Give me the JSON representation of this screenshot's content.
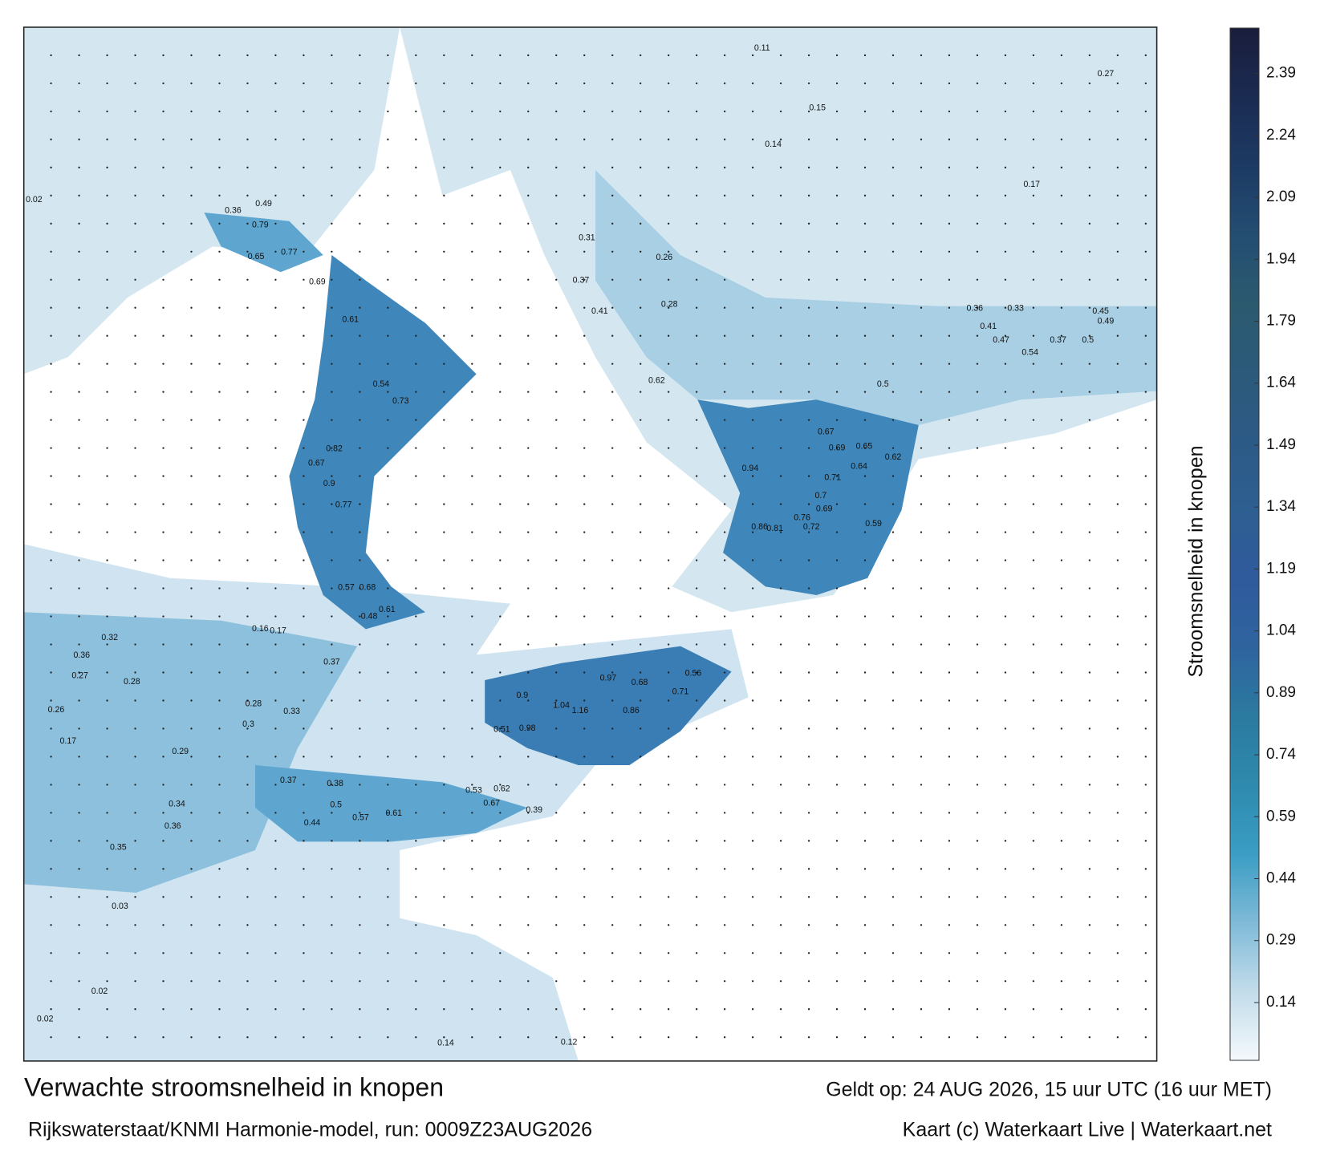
{
  "map": {
    "labels": [
      0.86,
      1.16,
      1.04,
      0.97,
      0.71,
      0.56,
      0.68,
      0.9,
      0.51,
      0.98,
      0.62,
      0.67,
      0.53,
      0.39,
      0.61,
      0.57,
      0.5,
      0.44,
      0.38,
      0.37,
      0.36,
      0.34,
      0.29,
      0.3,
      0.28,
      0.33,
      0.37,
      0.48,
      0.61,
      0.68,
      0.57,
      0.77,
      0.9,
      0.79,
      0.65,
      0.77,
      0.69,
      0.61,
      0.54,
      0.73,
      0.82,
      0.67,
      0.94,
      0.86,
      0.81,
      0.76,
      0.72,
      0.7,
      0.69,
      0.71,
      0.67,
      0.69,
      0.65,
      0.62,
      0.64,
      0.59,
      0.5,
      0.54,
      0.47,
      0.41,
      0.33,
      0.36,
      0.49,
      0.45,
      0.5,
      0.37,
      0.62,
      0.41,
      0.37,
      0.26,
      0.28,
      0.31,
      0.49,
      0.36,
      0.17,
      0.27,
      0.11,
      0.15,
      0.14,
      0.02,
      0.02,
      0.02,
      0.14,
      0.12,
      0.36,
      0.32,
      0.27,
      0.28,
      0.26,
      0.17,
      0.35,
      0.03,
      0.16,
      0.17
    ]
  },
  "colorbar": {
    "label": "Stroomsnelheid in knopen",
    "lim": [
      0,
      2.5
    ],
    "ticks": [
      0.14,
      0.29,
      0.44,
      0.59,
      0.74,
      0.89,
      1.04,
      1.19,
      1.34,
      1.49,
      1.64,
      1.79,
      1.94,
      2.09,
      2.24,
      2.39
    ],
    "colors": [
      "#f4f9fc",
      "#c2dcea",
      "#7fbad8",
      "#3b9dc4",
      "#2e8aae",
      "#2b7aa0",
      "#2f649f",
      "#2f5a9c",
      "#2e5f91",
      "#2c5a86",
      "#2b5a7a",
      "#2b5a6f",
      "#244d72",
      "#1c3a63",
      "#1b2b52",
      "#1a1d3c"
    ]
  },
  "footer": {
    "title": "Verwachte stroomsnelheid in knopen",
    "valid": "Geldt op: 24 AUG 2026, 15 uur UTC (16 uur MET)",
    "model": "Rijkswaterstaat/KNMI Harmonie-model, run: 0009Z23AUG2026",
    "credit": "Kaart (c) Waterkaart Live | Waterkaart.net"
  }
}
